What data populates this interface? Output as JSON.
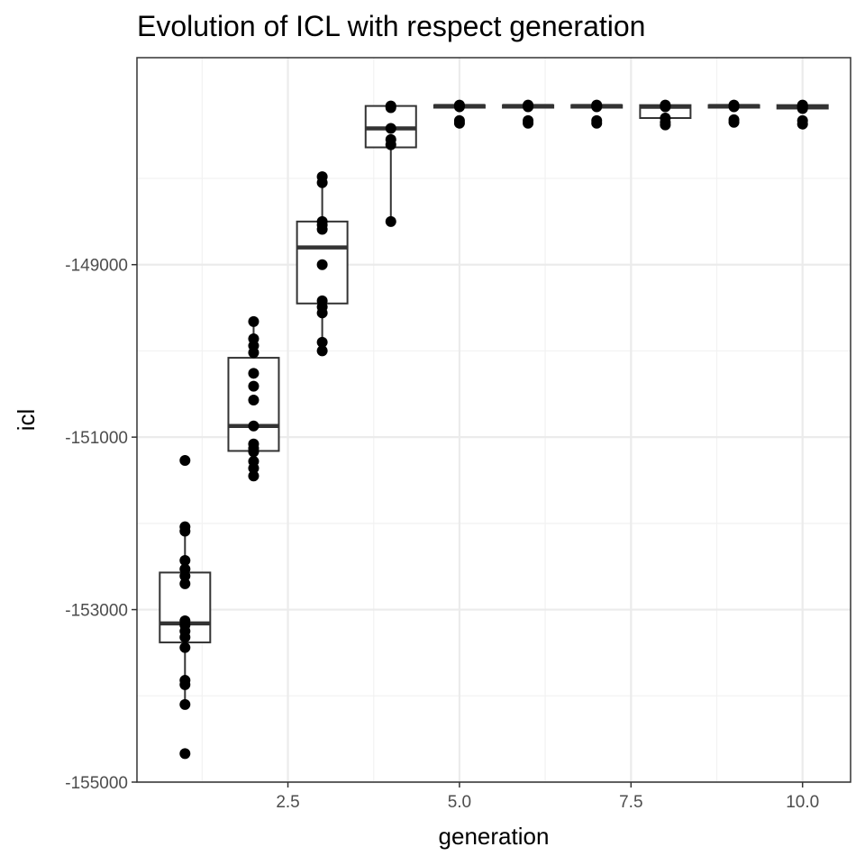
{
  "chart_data": {
    "type": "boxplot",
    "title": "Evolution of ICL with respect generation",
    "xlabel": "generation",
    "ylabel": "icl",
    "xlim": [
      0.3,
      10.7
    ],
    "ylim": [
      -155000,
      -146600
    ],
    "x_ticks": [
      2.5,
      5.0,
      7.5,
      10.0
    ],
    "x_tick_labels": [
      "2.5",
      "5.0",
      "7.5",
      "10.0"
    ],
    "y_ticks": [
      -155000,
      -153000,
      -151000,
      -149000
    ],
    "y_tick_labels": [
      "-155000",
      "-153000",
      "-151000",
      "-149000"
    ],
    "grid": true,
    "legend": "none",
    "boxes": [
      {
        "x": 1,
        "q1": -153380,
        "median": -153160,
        "q3": -152570,
        "lower_whisker": -154100,
        "upper_whisker": -152080
      },
      {
        "x": 2,
        "q1": -151160,
        "median": -150870,
        "q3": -150080,
        "lower_whisker": -151450,
        "upper_whisker": -149660
      },
      {
        "x": 3,
        "q1": -149450,
        "median": -148800,
        "q3": -148500,
        "lower_whisker": -150000,
        "upper_whisker": -147980
      },
      {
        "x": 4,
        "q1": -147640,
        "median": -147420,
        "q3": -147160,
        "lower_whisker": -148500,
        "upper_whisker": -147160
      },
      {
        "x": 5,
        "q1": -147180,
        "median": -147160,
        "q3": -147150,
        "lower_whisker": -147180,
        "upper_whisker": -147150
      },
      {
        "x": 6,
        "q1": -147180,
        "median": -147160,
        "q3": -147150,
        "lower_whisker": -147180,
        "upper_whisker": -147150
      },
      {
        "x": 7,
        "q1": -147180,
        "median": -147160,
        "q3": -147150,
        "lower_whisker": -147180,
        "upper_whisker": -147150
      },
      {
        "x": 8,
        "q1": -147300,
        "median": -147170,
        "q3": -147150,
        "lower_whisker": -147300,
        "upper_whisker": -147150
      },
      {
        "x": 9,
        "q1": -147180,
        "median": -147160,
        "q3": -147150,
        "lower_whisker": -147180,
        "upper_whisker": -147150
      },
      {
        "x": 10,
        "q1": -147190,
        "median": -147170,
        "q3": -147150,
        "lower_whisker": -147190,
        "upper_whisker": -147150
      }
    ],
    "points": [
      {
        "x": 1,
        "y": [
          -151270,
          -152040,
          -152090,
          -152430,
          -152530,
          -152610,
          -152700,
          -153130,
          -153180,
          -153250,
          -153320,
          -153440,
          -153820,
          -153870,
          -154100,
          -154670
        ]
      },
      {
        "x": 2,
        "y": [
          -149660,
          -149860,
          -149940,
          -150020,
          -150260,
          -150410,
          -150570,
          -150870,
          -151080,
          -151130,
          -151170,
          -151280,
          -151360,
          -151450
        ]
      },
      {
        "x": 3,
        "y": [
          -147980,
          -148050,
          -148500,
          -148540,
          -148590,
          -149000,
          -149420,
          -149490,
          -149560,
          -149900,
          -150000
        ]
      },
      {
        "x": 4,
        "y": [
          -147160,
          -147180,
          -147420,
          -147550,
          -147610,
          -148500
        ]
      },
      {
        "x": 5,
        "y": [
          -147150,
          -147160,
          -147170,
          -147330,
          -147360
        ]
      },
      {
        "x": 6,
        "y": [
          -147150,
          -147160,
          -147170,
          -147330,
          -147360
        ]
      },
      {
        "x": 7,
        "y": [
          -147150,
          -147160,
          -147170,
          -147330,
          -147360
        ]
      },
      {
        "x": 8,
        "y": [
          -147150,
          -147160,
          -147170,
          -147300,
          -147350,
          -147380
        ]
      },
      {
        "x": 9,
        "y": [
          -147150,
          -147160,
          -147170,
          -147320,
          -147350
        ]
      },
      {
        "x": 10,
        "y": [
          -147150,
          -147160,
          -147170,
          -147190,
          -147330,
          -147370
        ]
      }
    ]
  }
}
